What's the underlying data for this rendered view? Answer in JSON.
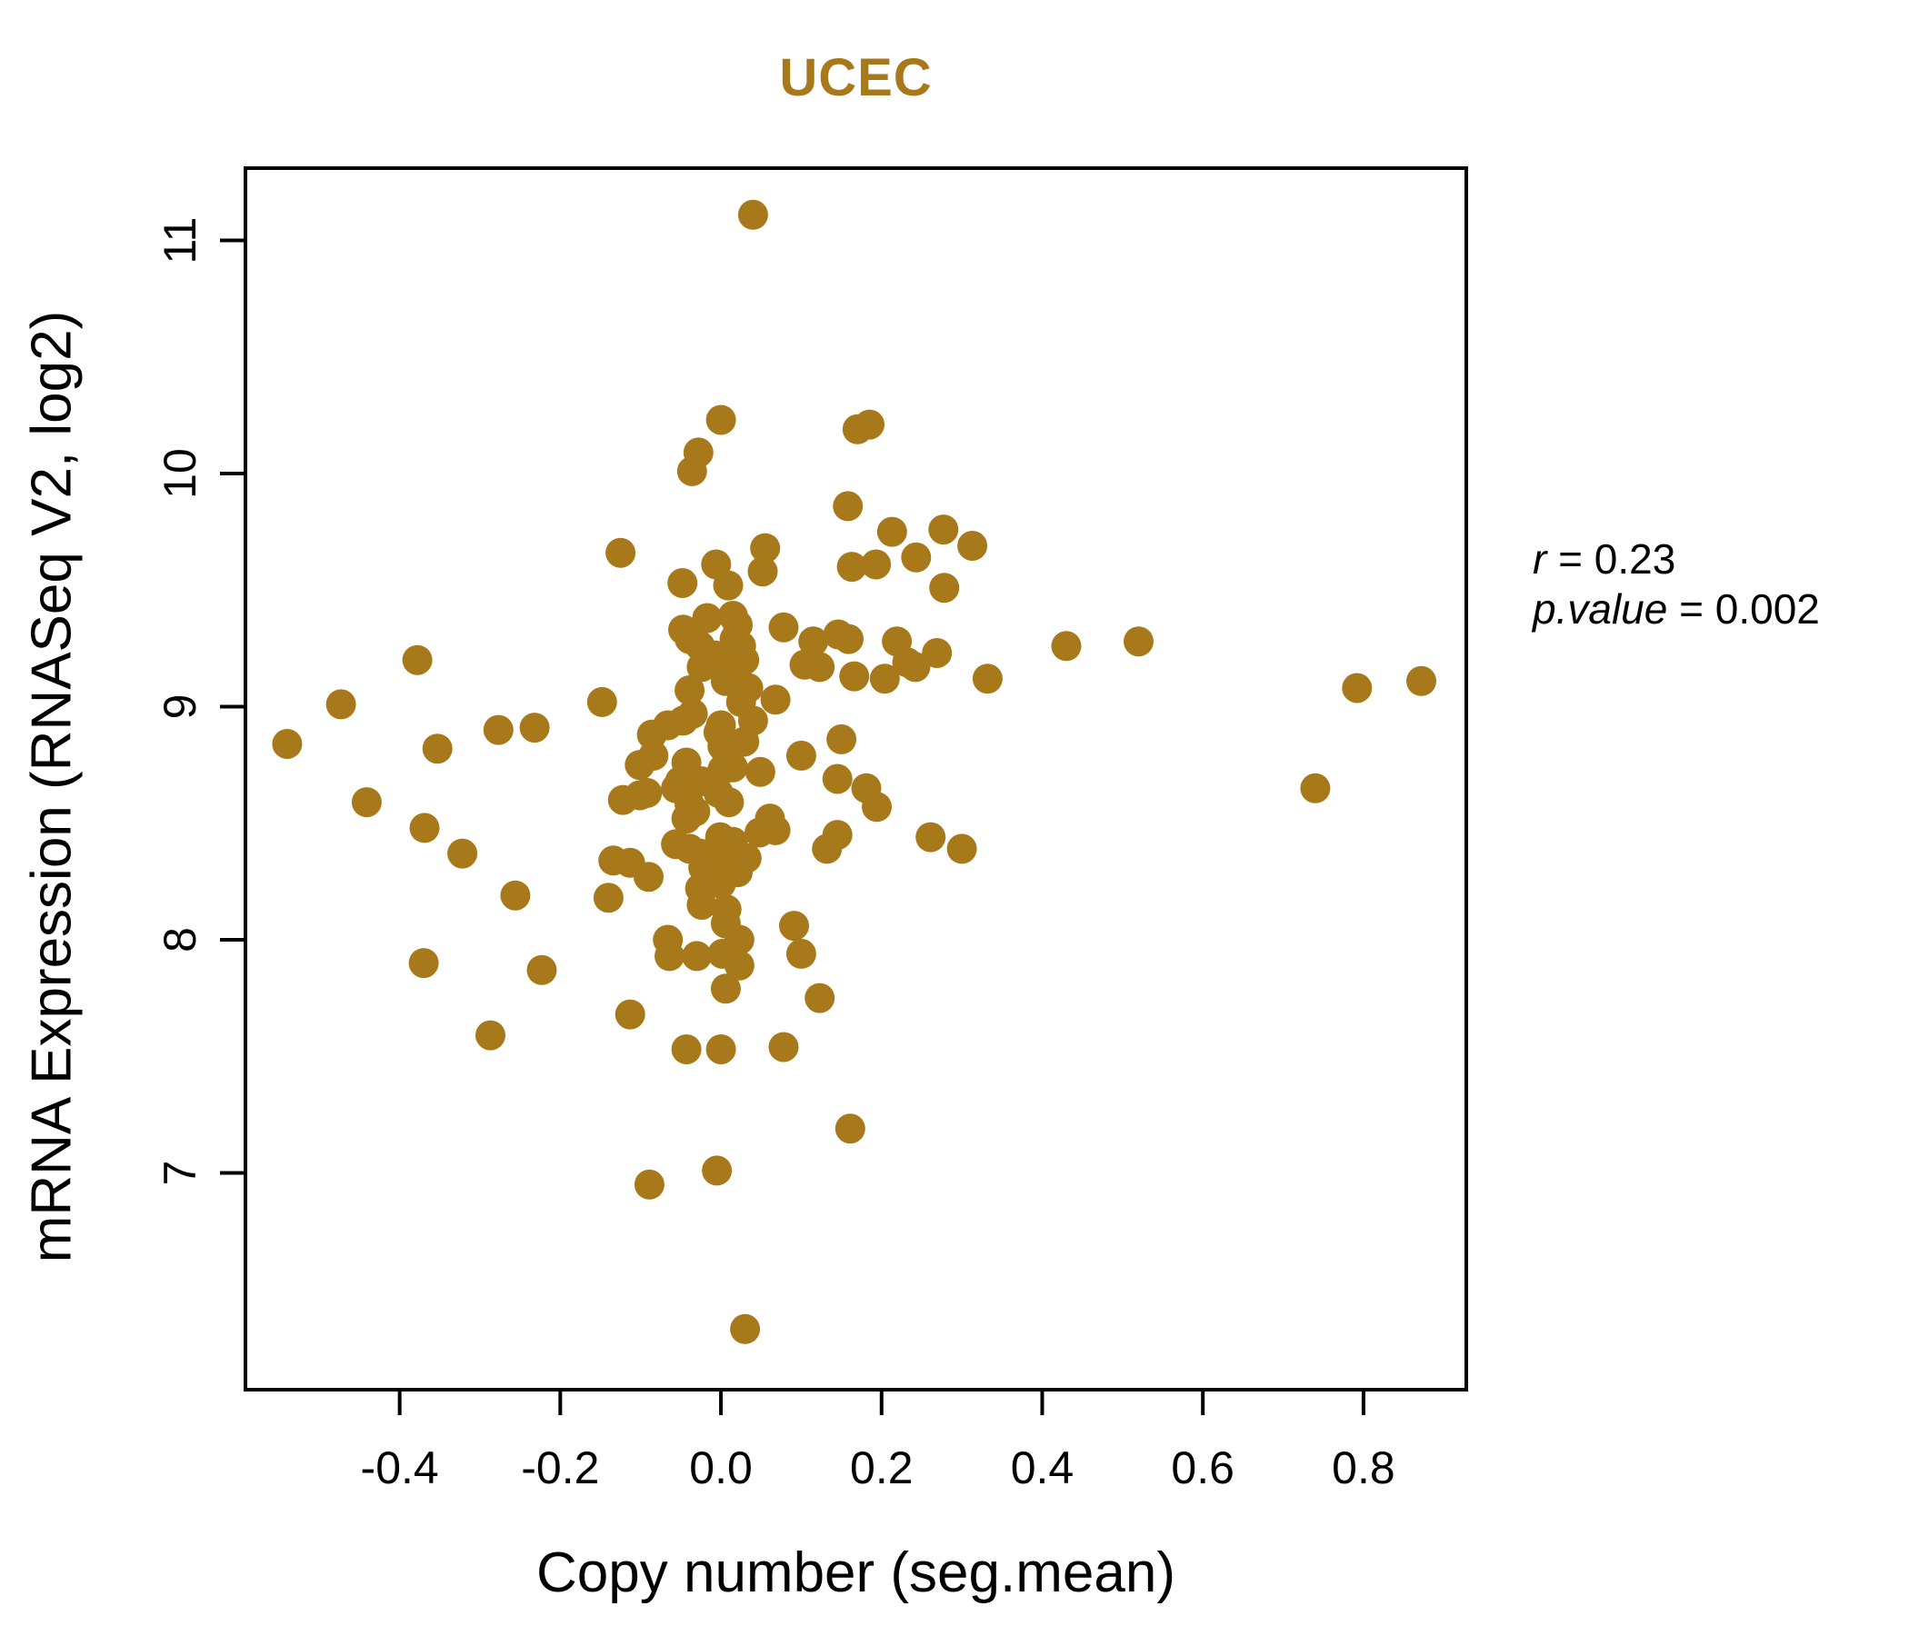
{
  "title": "UCEC",
  "annotation": {
    "r_var": "r",
    "r_rest": " = 0.23",
    "p_var": "p.value",
    "p_rest": " = 0.002"
  },
  "colors": {
    "point": "#A8791A",
    "title": "#A8791A",
    "axis": "#000000",
    "background": "#ffffff"
  },
  "chart_data": {
    "type": "scatter",
    "title": "UCEC",
    "xlabel": "Copy number (seg.mean)",
    "ylabel": "mRNA Expression (RNASeq V2, log2)",
    "x_tick_labels": [
      "-0.4",
      "-0.2",
      "0.0",
      "0.2",
      "0.4",
      "0.6",
      "0.8"
    ],
    "x_tick_values": [
      -0.4,
      -0.2,
      0.0,
      0.2,
      0.4,
      0.6,
      0.8
    ],
    "y_tick_labels": [
      "7",
      "8",
      "9",
      "10",
      "11"
    ],
    "y_tick_values": [
      7,
      8,
      9,
      10,
      11
    ],
    "xlim": [
      -0.592,
      0.928
    ],
    "ylim": [
      6.07,
      11.31
    ],
    "grid": false,
    "legend": null,
    "annotations": [
      "r = 0.23",
      "p.value = 0.002"
    ],
    "correlation_r": 0.23,
    "p_value": 0.002,
    "points": [
      [
        0.04,
        11.11
      ],
      [
        0.0,
        10.23
      ],
      [
        -0.028,
        10.09
      ],
      [
        -0.036,
        10.01
      ],
      [
        0.17,
        10.19
      ],
      [
        0.185,
        10.21
      ],
      [
        0.158,
        9.86
      ],
      [
        -0.125,
        9.66
      ],
      [
        0.213,
        9.75
      ],
      [
        0.277,
        9.76
      ],
      [
        0.243,
        9.64
      ],
      [
        0.313,
        9.69
      ],
      [
        0.278,
        9.51
      ],
      [
        0.055,
        9.68
      ],
      [
        -0.006,
        9.61
      ],
      [
        0.052,
        9.58
      ],
      [
        -0.048,
        9.53
      ],
      [
        0.009,
        9.52
      ],
      [
        0.163,
        9.6
      ],
      [
        0.193,
        9.61
      ],
      [
        -0.378,
        9.2
      ],
      [
        -0.473,
        9.01
      ],
      [
        -0.54,
        8.84
      ],
      [
        -0.353,
        8.82
      ],
      [
        -0.441,
        8.59
      ],
      [
        -0.369,
        8.48
      ],
      [
        -0.322,
        8.37
      ],
      [
        -0.256,
        8.19
      ],
      [
        -0.37,
        7.9
      ],
      [
        -0.287,
        7.59
      ],
      [
        -0.223,
        7.87
      ],
      [
        -0.14,
        8.18
      ],
      [
        -0.113,
        7.68
      ],
      [
        -0.089,
        6.95
      ],
      [
        -0.005,
        7.01
      ],
      [
        0.03,
        6.33
      ],
      [
        -0.043,
        7.53
      ],
      [
        0.0,
        7.53
      ],
      [
        0.078,
        7.54
      ],
      [
        0.161,
        7.19
      ],
      [
        0.43,
        9.26
      ],
      [
        0.52,
        9.28
      ],
      [
        0.792,
        9.08
      ],
      [
        0.872,
        9.11
      ],
      [
        0.74,
        8.65
      ],
      [
        0.219,
        9.28
      ],
      [
        0.232,
        9.19
      ],
      [
        0.242,
        9.17
      ],
      [
        0.269,
        9.23
      ],
      [
        0.204,
        9.12
      ],
      [
        0.332,
        9.12
      ],
      [
        0.261,
        8.44
      ],
      [
        0.3,
        8.39
      ],
      [
        0.181,
        8.65
      ],
      [
        0.194,
        8.57
      ],
      [
        -0.277,
        8.9
      ],
      [
        -0.232,
        8.91
      ],
      [
        -0.148,
        9.02
      ],
      [
        -0.047,
        9.33
      ],
      [
        -0.039,
        9.29
      ],
      [
        -0.026,
        9.26
      ],
      [
        0.017,
        9.29
      ],
      [
        0.025,
        9.26
      ],
      [
        0.115,
        9.28
      ],
      [
        0.146,
        9.31
      ],
      [
        0.159,
        9.29
      ],
      [
        -0.017,
        9.38
      ],
      [
        0.015,
        9.39
      ],
      [
        0.021,
        9.35
      ],
      [
        0.078,
        9.34
      ],
      [
        -0.024,
        9.17
      ],
      [
        -0.007,
        9.22
      ],
      [
        0.016,
        9.15
      ],
      [
        0.029,
        9.2
      ],
      [
        0.104,
        9.18
      ],
      [
        0.123,
        9.17
      ],
      [
        0.166,
        9.13
      ],
      [
        -0.039,
        9.07
      ],
      [
        0.006,
        9.11
      ],
      [
        0.034,
        9.08
      ],
      [
        0.068,
        9.03
      ],
      [
        -0.035,
        8.97
      ],
      [
        0.0,
        8.92
      ],
      [
        0.025,
        9.02
      ],
      [
        0.04,
        8.94
      ],
      [
        -0.086,
        8.88
      ],
      [
        -0.066,
        8.92
      ],
      [
        -0.047,
        8.94
      ],
      [
        -0.003,
        8.89
      ],
      [
        0.002,
        8.83
      ],
      [
        0.008,
        8.78
      ],
      [
        0.029,
        8.85
      ],
      [
        0.1,
        8.79
      ],
      [
        0.15,
        8.86
      ],
      [
        -0.101,
        8.75
      ],
      [
        -0.084,
        8.79
      ],
      [
        -0.043,
        8.76
      ],
      [
        -0.024,
        8.68
      ],
      [
        -0.051,
        8.68
      ],
      [
        0.002,
        8.73
      ],
      [
        0.015,
        8.74
      ],
      [
        0.049,
        8.72
      ],
      [
        0.145,
        8.69
      ],
      [
        -0.122,
        8.6
      ],
      [
        -0.101,
        8.62
      ],
      [
        -0.092,
        8.63
      ],
      [
        -0.056,
        8.65
      ],
      [
        -0.039,
        8.58
      ],
      [
        -0.032,
        8.55
      ],
      [
        -0.003,
        8.63
      ],
      [
        0.01,
        8.59
      ],
      [
        -0.043,
        8.52
      ],
      [
        0.061,
        8.52
      ],
      [
        0.068,
        8.47
      ],
      [
        0.048,
        8.46
      ],
      [
        0.145,
        8.45
      ],
      [
        0.132,
        8.39
      ],
      [
        -0.001,
        8.44
      ],
      [
        0.015,
        8.42
      ],
      [
        -0.056,
        8.41
      ],
      [
        -0.039,
        8.39
      ],
      [
        -0.026,
        8.37
      ],
      [
        -0.134,
        8.34
      ],
      [
        -0.113,
        8.33
      ],
      [
        0.002,
        8.37
      ],
      [
        0.032,
        8.35
      ],
      [
        -0.09,
        8.27
      ],
      [
        -0.022,
        8.31
      ],
      [
        -0.007,
        8.32
      ],
      [
        -0.017,
        8.26
      ],
      [
        -0.026,
        8.22
      ],
      [
        0.0,
        8.24
      ],
      [
        0.021,
        8.29
      ],
      [
        -0.024,
        8.15
      ],
      [
        0.007,
        8.13
      ],
      [
        0.006,
        8.07
      ],
      [
        -0.066,
        8.0
      ],
      [
        -0.064,
        7.93
      ],
      [
        -0.03,
        7.93
      ],
      [
        0.002,
        7.94
      ],
      [
        0.023,
        8.0
      ],
      [
        0.023,
        7.89
      ],
      [
        0.006,
        7.79
      ],
      [
        0.091,
        8.06
      ],
      [
        0.1,
        7.94
      ],
      [
        0.123,
        7.75
      ]
    ]
  }
}
